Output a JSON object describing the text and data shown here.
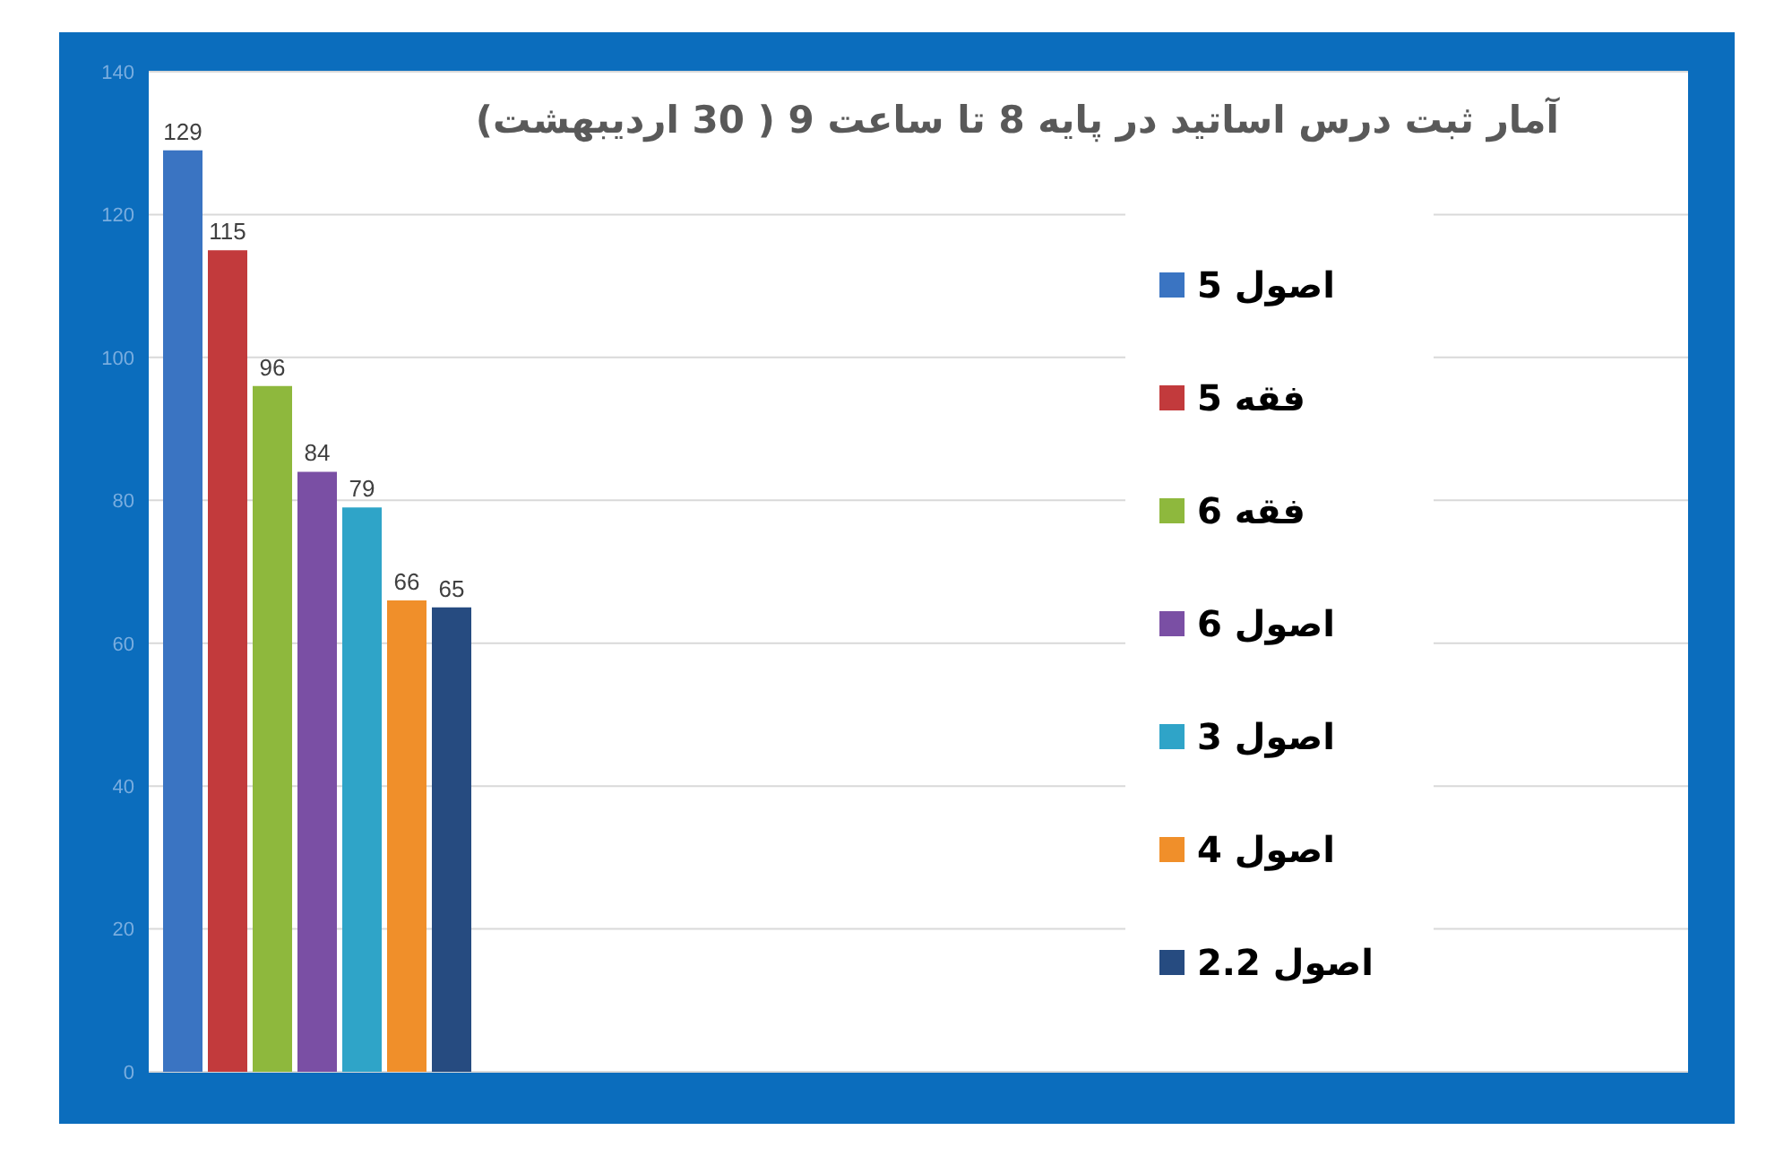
{
  "chart_data": {
    "type": "bar",
    "title": "آمار ثبت درس اساتید در پایه 8 تا ساعت 9 ( 30 اردیبهشت)",
    "categories": [
      null
    ],
    "series": [
      {
        "name": "اصول 5",
        "color": "#3a74c2",
        "values": [
          129
        ]
      },
      {
        "name": "فقه 5",
        "color": "#c23a3c",
        "values": [
          115
        ]
      },
      {
        "name": "فقه 6",
        "color": "#8eb83d",
        "values": [
          96
        ]
      },
      {
        "name": "اصول 6",
        "color": "#7a4fa4",
        "values": [
          84
        ]
      },
      {
        "name": "اصول 3",
        "color": "#2fa4c8",
        "values": [
          79
        ]
      },
      {
        "name": "اصول 4",
        "color": "#f08f2a",
        "values": [
          66
        ]
      },
      {
        "name": "اصول 2.2",
        "color": "#264b80",
        "values": [
          65
        ]
      }
    ],
    "ylim": [
      0,
      140
    ],
    "yticks": [
      0,
      20,
      40,
      60,
      80,
      100,
      120,
      140
    ],
    "grid": "y",
    "legend": "right",
    "data_labels": true
  }
}
